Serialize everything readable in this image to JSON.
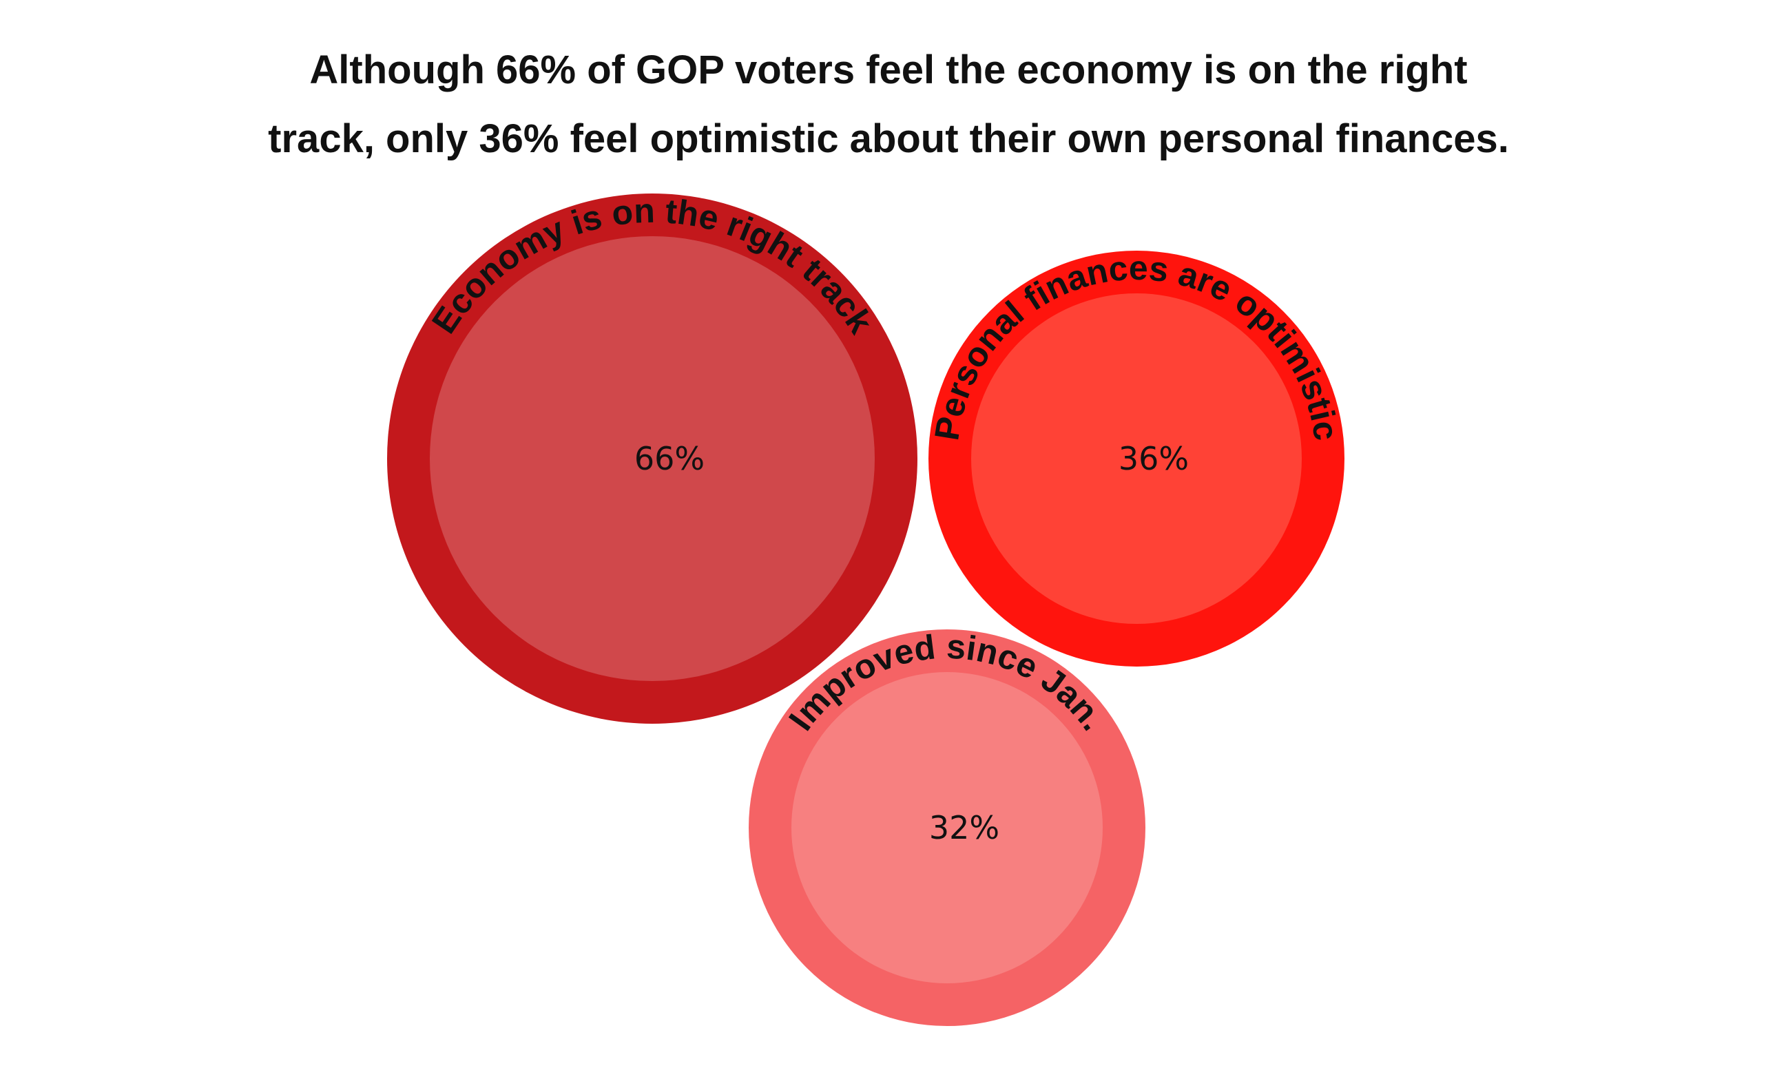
{
  "title_lines": [
    "Although 66% of GOP voters feel the economy is on the right",
    "track, only 36% feel optimistic about their own personal finances."
  ],
  "chart_data": {
    "type": "bubble",
    "title": "Although 66% of GOP voters feel the economy is on the right track, only 36% feel optimistic about their own personal finances.",
    "unit": "%",
    "series": [
      {
        "name": "Economy is on the right track",
        "value": 66,
        "value_label": "66%",
        "ring_color": "#C3181C",
        "fill_color": "#D0484B"
      },
      {
        "name": "Personal finances are optimistic",
        "value": 36,
        "value_label": "36%",
        "ring_color": "#FF140D",
        "fill_color": "#FF4236"
      },
      {
        "name": "Improved since Jan.",
        "value": 32,
        "value_label": "32%",
        "ring_color": "#F56365",
        "fill_color": "#F78080"
      }
    ]
  }
}
